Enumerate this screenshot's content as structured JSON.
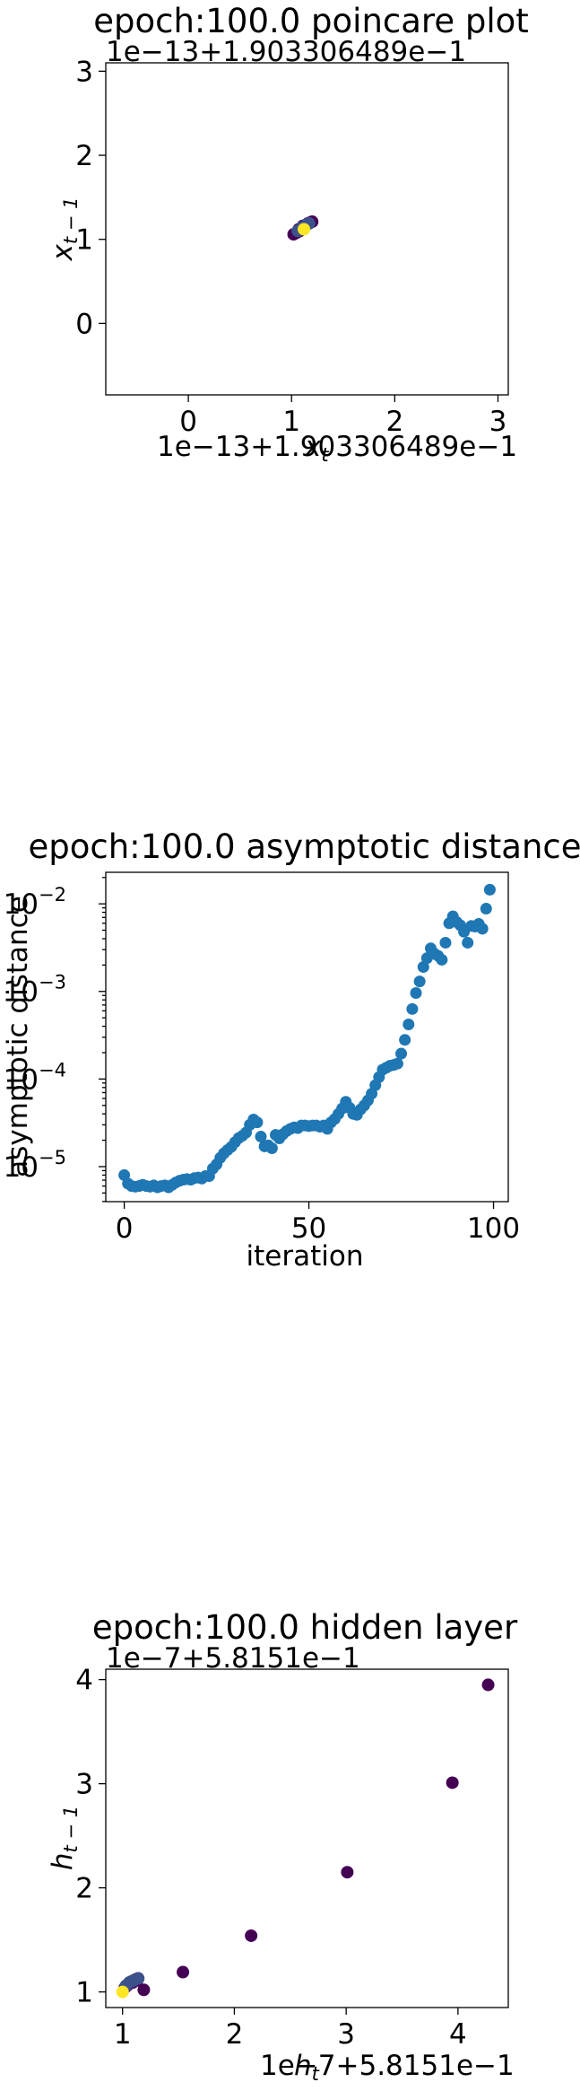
{
  "chart_data": [
    {
      "type": "scatter",
      "title": "epoch:100.0 poincare plot",
      "xlabel": "x_t",
      "ylabel": "x_{t-1}",
      "x_offset_text": "1e−13+1.903306489e−1",
      "y_offset_text": "1e−13+1.903306489e−1",
      "xlim": [
        -0.8,
        3.1
      ],
      "ylim": [
        -0.85,
        3.1
      ],
      "xticks": [
        "0",
        "1",
        "2",
        "3"
      ],
      "yticks": [
        "0",
        "1",
        "2",
        "3"
      ],
      "colors": {
        "early": "#440154",
        "mid": "#3b528b",
        "late": "#fde725"
      },
      "series": [
        {
          "x": [
            1.02,
            1.05,
            1.08,
            1.1,
            1.12,
            1.14,
            1.16,
            1.18,
            1.2,
            1.07,
            1.11,
            1.15
          ],
          "y": [
            1.06,
            1.08,
            1.1,
            1.13,
            1.15,
            1.17,
            1.19,
            1.2,
            1.21,
            1.12,
            1.16,
            1.18
          ],
          "color": "#440154"
        },
        {
          "x": [
            1.06,
            1.1,
            1.14,
            1.17
          ],
          "y": [
            1.1,
            1.14,
            1.17,
            1.19
          ],
          "color": "#3b528b"
        },
        {
          "x": [
            1.12
          ],
          "y": [
            1.12
          ],
          "color": "#fde725"
        }
      ]
    },
    {
      "type": "scatter",
      "title": "epoch:100.0 asymptotic distance",
      "xlabel": "iteration",
      "ylabel": "asymptotic distance",
      "yscale": "log",
      "xlim": [
        -5,
        104
      ],
      "ylim_log10": [
        -5.4,
        -1.64
      ],
      "xticks": [
        "0",
        "50",
        "100"
      ],
      "yticks": [
        "10^-5",
        "10^-4",
        "10^-3",
        "10^-2"
      ],
      "color": "#1f77b4",
      "x": [
        0,
        1,
        2,
        3,
        4,
        5,
        6,
        7,
        8,
        9,
        10,
        11,
        12,
        13,
        14,
        15,
        16,
        17,
        18,
        19,
        20,
        21,
        22,
        23,
        24,
        25,
        26,
        27,
        28,
        29,
        30,
        31,
        32,
        33,
        34,
        35,
        36,
        37,
        38,
        39,
        40,
        41,
        42,
        43,
        44,
        45,
        46,
        47,
        48,
        49,
        50,
        51,
        52,
        53,
        54,
        55,
        56,
        57,
        58,
        59,
        60,
        61,
        62,
        63,
        64,
        65,
        66,
        67,
        68,
        69,
        70,
        71,
        72,
        73,
        74,
        75,
        76,
        77,
        78,
        79,
        80,
        81,
        82,
        83,
        84,
        85,
        86,
        87,
        88,
        89,
        90,
        91,
        92,
        93,
        94,
        95,
        96,
        97,
        98,
        99
      ],
      "y": [
        8e-06,
        6.4e-06,
        6e-06,
        5.9e-06,
        6e-06,
        6.2e-06,
        6e-06,
        5.9e-06,
        6.1e-06,
        5.8e-06,
        6e-06,
        6.1e-06,
        5.8e-06,
        6.2e-06,
        6.6e-06,
        6.9e-06,
        7.1e-06,
        7.2e-06,
        7.1e-06,
        7.4e-06,
        7.5e-06,
        7.3e-06,
        7.8e-06,
        7.8e-06,
        9.5e-06,
        1.06e-05,
        1.26e-05,
        1.42e-05,
        1.55e-05,
        1.68e-05,
        1.9e-05,
        2.12e-05,
        2.25e-05,
        2.45e-05,
        3e-05,
        3.45e-05,
        3.2e-05,
        2.2e-05,
        1.7e-05,
        1.75e-05,
        1.62e-05,
        2.3e-05,
        2.1e-05,
        2.35e-05,
        2.55e-05,
        2.7e-05,
        2.8e-05,
        2.75e-05,
        2.95e-05,
        2.95e-05,
        2.9e-05,
        2.95e-05,
        2.95e-05,
        2.85e-05,
        2.95e-05,
        2.7e-05,
        3.2e-05,
        3.5e-05,
        4e-05,
        4.6e-05,
        5.5e-05,
        4.7e-05,
        4e-05,
        3.9e-05,
        4.5e-05,
        5e-05,
        5.7e-05,
        6.8e-05,
        8.5e-05,
        0.000105,
        0.000128,
        0.000135,
        0.000142,
        0.000145,
        0.00015,
        0.000195,
        0.00028,
        0.00042,
        0.00063,
        0.00096,
        0.0013,
        0.0019,
        0.0024,
        0.0031,
        0.0027,
        0.00255,
        0.0023,
        0.0036,
        0.006,
        0.0072,
        0.0062,
        0.0057,
        0.0048,
        0.0036,
        0.0056,
        0.0055,
        0.0059,
        0.0052,
        0.0088,
        0.0145
      ]
    },
    {
      "type": "scatter",
      "title": "epoch:100.0 hidden layer",
      "xlabel": "h_t",
      "ylabel": "h_{t-1}",
      "x_offset_text": "1e−7+5.8151e−1",
      "y_offset_text": "1e−7+5.8151e−1",
      "xlim": [
        0.85,
        4.45
      ],
      "ylim": [
        0.85,
        4.1
      ],
      "xticks": [
        "1",
        "2",
        "3",
        "4"
      ],
      "yticks": [
        "1",
        "2",
        "3",
        "4"
      ],
      "colors": {
        "early": "#440154",
        "mid": "#3b528b",
        "late": "#fde725"
      },
      "series": [
        {
          "x": [
            4.27,
            3.95,
            3.01,
            2.15,
            1.54,
            1.19
          ],
          "y": [
            3.95,
            3.01,
            2.15,
            1.54,
            1.19,
            1.02
          ],
          "color": "#440154"
        },
        {
          "x": [
            1.02,
            1.04,
            1.06,
            1.08,
            1.1,
            1.12,
            1.14,
            1.05,
            1.09,
            1.13
          ],
          "y": [
            1.04,
            1.06,
            1.08,
            1.1,
            1.11,
            1.12,
            1.13,
            1.07,
            1.09,
            1.11
          ],
          "color": "#440154"
        },
        {
          "x": [
            1.03,
            1.06,
            1.1,
            1.14
          ],
          "y": [
            1.06,
            1.09,
            1.11,
            1.13
          ],
          "color": "#3b528b"
        },
        {
          "x": [
            1.0
          ],
          "y": [
            1.0
          ],
          "color": "#fde725"
        }
      ]
    }
  ]
}
